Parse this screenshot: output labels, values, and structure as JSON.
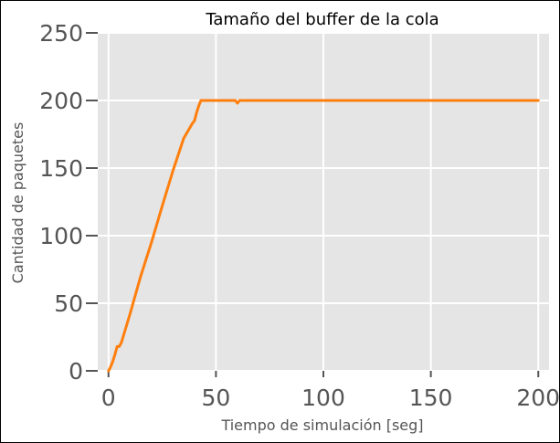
{
  "chart_data": {
    "type": "line",
    "title": "Tamaño del buffer de la cola",
    "xlabel": "Tiempo de simulación [seg]",
    "ylabel": "Cantidad de paquetes",
    "xlim": [
      -5,
      205
    ],
    "ylim": [
      0,
      250
    ],
    "xticks": [
      0,
      50,
      100,
      150,
      200
    ],
    "yticks": [
      0,
      50,
      100,
      150,
      200,
      250
    ],
    "grid": true,
    "background": "#e5e5e5",
    "series": [
      {
        "color": "#ff7f0e",
        "x": [
          0,
          1,
          2,
          3,
          4,
          5,
          6,
          10,
          15,
          20,
          25,
          30,
          35,
          39,
          40,
          41,
          42,
          43,
          50,
          55,
          59,
          60,
          61,
          65,
          100,
          150,
          200
        ],
        "y": [
          0,
          3,
          7,
          12,
          18,
          18,
          21,
          42,
          70,
          95,
          122,
          148,
          172,
          183,
          185,
          191,
          196,
          200,
          200,
          200,
          200,
          198,
          200,
          200,
          200,
          200,
          200
        ]
      }
    ]
  }
}
